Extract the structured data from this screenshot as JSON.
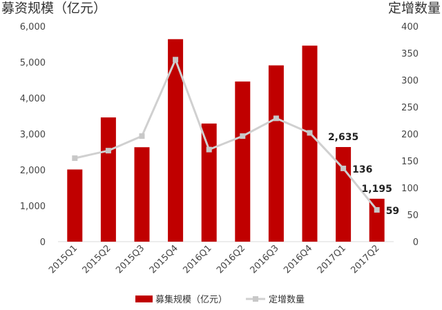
{
  "chart_data": {
    "type": "bar",
    "categories": [
      "2015Q1",
      "2015Q2",
      "2015Q3",
      "2015Q4",
      "2016Q1",
      "2016Q2",
      "2016Q3",
      "2016Q4",
      "2017Q1",
      "2017Q2"
    ],
    "series": [
      {
        "name": "募集规模（亿元）",
        "type": "bar",
        "axis": "left",
        "color": "#c00000",
        "values": [
          2010,
          3460,
          2630,
          5640,
          3290,
          4460,
          4910,
          5460,
          2635,
          1195
        ]
      },
      {
        "name": "定增数量",
        "type": "line",
        "axis": "right",
        "color": "#d0d0d0",
        "values": [
          155,
          169,
          196,
          338,
          171,
          196,
          229,
          202,
          136,
          59
        ]
      }
    ],
    "left_axis": {
      "title": "募资规模（亿元）",
      "ylim": [
        0,
        6000
      ],
      "ticks": [
        0,
        1000,
        2000,
        3000,
        4000,
        5000,
        6000
      ],
      "tick_labels": [
        "0",
        "1,000",
        "2,000",
        "3,000",
        "4,000",
        "5,000",
        "6,000"
      ]
    },
    "right_axis": {
      "title": "定增数量",
      "ylim": [
        0,
        400
      ],
      "ticks": [
        0,
        50,
        100,
        150,
        200,
        250,
        300,
        350,
        400
      ],
      "tick_labels": [
        "0",
        "50",
        "100",
        "150",
        "200",
        "250",
        "300",
        "350",
        "400"
      ]
    },
    "data_labels": [
      {
        "series": 0,
        "index": 8,
        "text": "2,635"
      },
      {
        "series": 0,
        "index": 9,
        "text": "1,195"
      },
      {
        "series": 1,
        "index": 8,
        "text": "136"
      },
      {
        "series": 1,
        "index": 9,
        "text": "59"
      }
    ],
    "grid": false,
    "legend_position": "bottom"
  }
}
